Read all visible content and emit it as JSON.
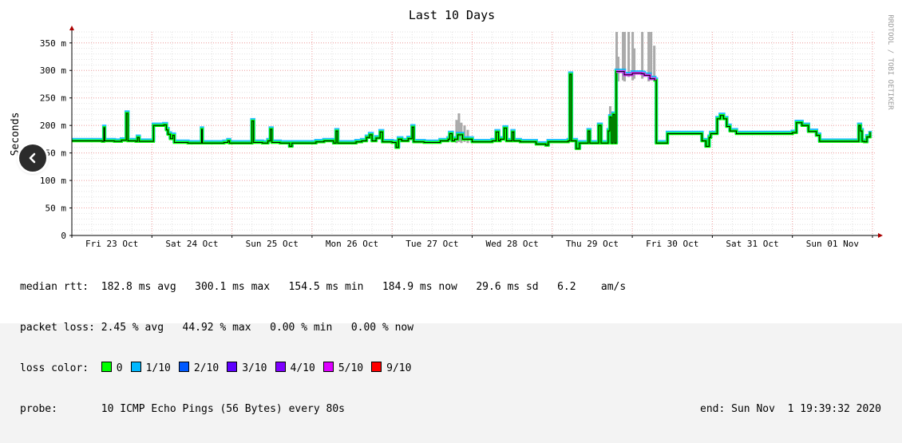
{
  "chart_data": {
    "type": "line",
    "title": "Last 10 Days",
    "ylabel": "Seconds",
    "side_label": "RRDTOOL / TOBI OETIKER",
    "ylim": [
      0,
      370
    ],
    "yticks": [
      {
        "value": 0,
        "label": "0"
      },
      {
        "value": 50,
        "label": "50 m"
      },
      {
        "value": 100,
        "label": "100 m"
      },
      {
        "value": 150,
        "label": "150 m"
      },
      {
        "value": 200,
        "label": "200 m"
      },
      {
        "value": 250,
        "label": "250 m"
      },
      {
        "value": 300,
        "label": "300 m"
      },
      {
        "value": 350,
        "label": "350 m"
      }
    ],
    "xrange": [
      0,
      10.03
    ],
    "xticks": [
      {
        "value": 0.5,
        "label": "Fri 23 Oct"
      },
      {
        "value": 1.5,
        "label": "Sat 24 Oct"
      },
      {
        "value": 2.5,
        "label": "Sun 25 Oct"
      },
      {
        "value": 3.5,
        "label": "Mon 26 Oct"
      },
      {
        "value": 4.5,
        "label": "Tue 27 Oct"
      },
      {
        "value": 5.5,
        "label": "Wed 28 Oct"
      },
      {
        "value": 6.5,
        "label": "Thu 29 Oct"
      },
      {
        "value": 7.5,
        "label": "Fri 30 Oct"
      },
      {
        "value": 8.5,
        "label": "Sat 31 Oct"
      },
      {
        "value": 9.5,
        "label": "Sun 01 Nov"
      }
    ],
    "median_series": [
      [
        0.0,
        172
      ],
      [
        0.38,
        171
      ],
      [
        0.4,
        196
      ],
      [
        0.41,
        172
      ],
      [
        0.52,
        172
      ],
      [
        0.53,
        171
      ],
      [
        0.62,
        173
      ],
      [
        0.68,
        222
      ],
      [
        0.7,
        172
      ],
      [
        0.8,
        171
      ],
      [
        0.82,
        178
      ],
      [
        0.84,
        171
      ],
      [
        1.0,
        171
      ],
      [
        1.02,
        200
      ],
      [
        1.15,
        201
      ],
      [
        1.18,
        192
      ],
      [
        1.2,
        184
      ],
      [
        1.23,
        176
      ],
      [
        1.26,
        182
      ],
      [
        1.28,
        169
      ],
      [
        1.45,
        168
      ],
      [
        1.6,
        168
      ],
      [
        1.62,
        193
      ],
      [
        1.63,
        168
      ],
      [
        1.9,
        169
      ],
      [
        1.95,
        172
      ],
      [
        1.97,
        168
      ],
      [
        2.22,
        168
      ],
      [
        2.25,
        208
      ],
      [
        2.27,
        169
      ],
      [
        2.38,
        168
      ],
      [
        2.45,
        172
      ],
      [
        2.48,
        193
      ],
      [
        2.5,
        169
      ],
      [
        2.6,
        168
      ],
      [
        2.68,
        168
      ],
      [
        2.72,
        162
      ],
      [
        2.75,
        168
      ],
      [
        3.0,
        168
      ],
      [
        3.05,
        170
      ],
      [
        3.15,
        172
      ],
      [
        3.27,
        168
      ],
      [
        3.3,
        190
      ],
      [
        3.32,
        168
      ],
      [
        3.45,
        168
      ],
      [
        3.55,
        170
      ],
      [
        3.62,
        172
      ],
      [
        3.68,
        178
      ],
      [
        3.72,
        183
      ],
      [
        3.75,
        172
      ],
      [
        3.8,
        177
      ],
      [
        3.85,
        188
      ],
      [
        3.88,
        170
      ],
      [
        4.0,
        169
      ],
      [
        4.05,
        160
      ],
      [
        4.08,
        175
      ],
      [
        4.12,
        172
      ],
      [
        4.2,
        176
      ],
      [
        4.25,
        197
      ],
      [
        4.27,
        170
      ],
      [
        4.4,
        169
      ],
      [
        4.6,
        172
      ],
      [
        4.7,
        175
      ],
      [
        4.72,
        185
      ],
      [
        4.75,
        172
      ],
      [
        4.78,
        175
      ],
      [
        4.82,
        183
      ],
      [
        4.88,
        175
      ],
      [
        5.0,
        170
      ],
      [
        5.1,
        170
      ],
      [
        5.25,
        172
      ],
      [
        5.3,
        188
      ],
      [
        5.33,
        172
      ],
      [
        5.35,
        175
      ],
      [
        5.4,
        195
      ],
      [
        5.43,
        172
      ],
      [
        5.5,
        188
      ],
      [
        5.52,
        172
      ],
      [
        5.6,
        170
      ],
      [
        5.8,
        166
      ],
      [
        5.92,
        164
      ],
      [
        5.95,
        170
      ],
      [
        6.05,
        170
      ],
      [
        6.2,
        172
      ],
      [
        6.22,
        293
      ],
      [
        6.24,
        172
      ],
      [
        6.3,
        158
      ],
      [
        6.34,
        168
      ],
      [
        6.42,
        168
      ],
      [
        6.45,
        190
      ],
      [
        6.47,
        168
      ],
      [
        6.55,
        168
      ],
      [
        6.58,
        200
      ],
      [
        6.61,
        168
      ],
      [
        6.68,
        168
      ],
      [
        6.7,
        190
      ],
      [
        6.72,
        215
      ],
      [
        6.74,
        168
      ],
      [
        6.76,
        220
      ],
      [
        6.78,
        168
      ],
      [
        6.8,
        298
      ],
      [
        6.9,
        292
      ],
      [
        7.0,
        295
      ],
      [
        7.12,
        294
      ],
      [
        7.15,
        291
      ],
      [
        7.22,
        285
      ],
      [
        7.28,
        282
      ],
      [
        7.3,
        168
      ],
      [
        7.42,
        168
      ],
      [
        7.44,
        185
      ],
      [
        7.85,
        185
      ],
      [
        7.87,
        172
      ],
      [
        7.92,
        162
      ],
      [
        7.96,
        178
      ],
      [
        7.98,
        185
      ],
      [
        8.0,
        185
      ],
      [
        8.06,
        212
      ],
      [
        8.1,
        218
      ],
      [
        8.14,
        212
      ],
      [
        8.18,
        198
      ],
      [
        8.22,
        190
      ],
      [
        8.3,
        185
      ],
      [
        8.6,
        185
      ],
      [
        9.0,
        187
      ],
      [
        9.05,
        205
      ],
      [
        9.12,
        200
      ],
      [
        9.2,
        189
      ],
      [
        9.3,
        182
      ],
      [
        9.34,
        171
      ],
      [
        9.5,
        171
      ],
      [
        9.8,
        171
      ],
      [
        9.83,
        200
      ],
      [
        9.85,
        190
      ],
      [
        9.87,
        171
      ],
      [
        9.9,
        170
      ],
      [
        9.93,
        179
      ],
      [
        9.97,
        188
      ]
    ],
    "smoke_bars": [
      {
        "x": 4.8,
        "min": 168,
        "max": 210
      },
      {
        "x": 4.83,
        "min": 170,
        "max": 222
      },
      {
        "x": 4.86,
        "min": 168,
        "max": 205
      },
      {
        "x": 4.9,
        "min": 170,
        "max": 200
      },
      {
        "x": 4.94,
        "min": 168,
        "max": 192
      },
      {
        "x": 6.72,
        "min": 168,
        "max": 235
      },
      {
        "x": 6.8,
        "min": 295,
        "max": 370
      },
      {
        "x": 6.82,
        "min": 280,
        "max": 325
      },
      {
        "x": 6.88,
        "min": 282,
        "max": 370
      },
      {
        "x": 6.9,
        "min": 280,
        "max": 370
      },
      {
        "x": 6.95,
        "min": 288,
        "max": 370
      },
      {
        "x": 7.0,
        "min": 282,
        "max": 370
      },
      {
        "x": 7.02,
        "min": 285,
        "max": 340
      },
      {
        "x": 7.12,
        "min": 285,
        "max": 370
      },
      {
        "x": 7.2,
        "min": 280,
        "max": 370
      },
      {
        "x": 7.23,
        "min": 282,
        "max": 370
      },
      {
        "x": 7.27,
        "min": 282,
        "max": 345
      }
    ],
    "loss_segments": [
      {
        "from": 6.8,
        "to": 7.28,
        "color": "#e033ff"
      }
    ],
    "colors": {
      "line": "#000000",
      "loss0": "#00ff00",
      "loss1": "#00b8ff",
      "smoke": "#aaaaaa",
      "grid": "#f2a0a0",
      "axis": "#000000",
      "arrow": "#aa0000"
    }
  },
  "stats": {
    "median_label": "median rtt:",
    "median_values": "182.8 ms avg   300.1 ms max   154.5 ms min   184.9 ms now   29.6 ms sd   6.2    am/s",
    "loss_label": "packet loss:",
    "loss_values": "2.45 % avg   44.92 % max   0.00 % min   0.00 % now",
    "color_label": "loss color:",
    "probe_label": "probe:",
    "probe_value": "10 ICMP Echo Pings (56 Bytes) every 80s",
    "end_label": "end: Sun Nov  1 19:39:32 2020"
  },
  "loss_colors": [
    {
      "label": "0",
      "color": "#00ff00"
    },
    {
      "label": "1/10",
      "color": "#00b8ff"
    },
    {
      "label": "2/10",
      "color": "#0059ff"
    },
    {
      "label": "3/10",
      "color": "#5e00ff"
    },
    {
      "label": "4/10",
      "color": "#7e00ff"
    },
    {
      "label": "5/10",
      "color": "#dd00ff"
    },
    {
      "label": "9/10",
      "color": "#ff0000"
    }
  ],
  "nav": {
    "icon": "chevron-left-icon"
  }
}
